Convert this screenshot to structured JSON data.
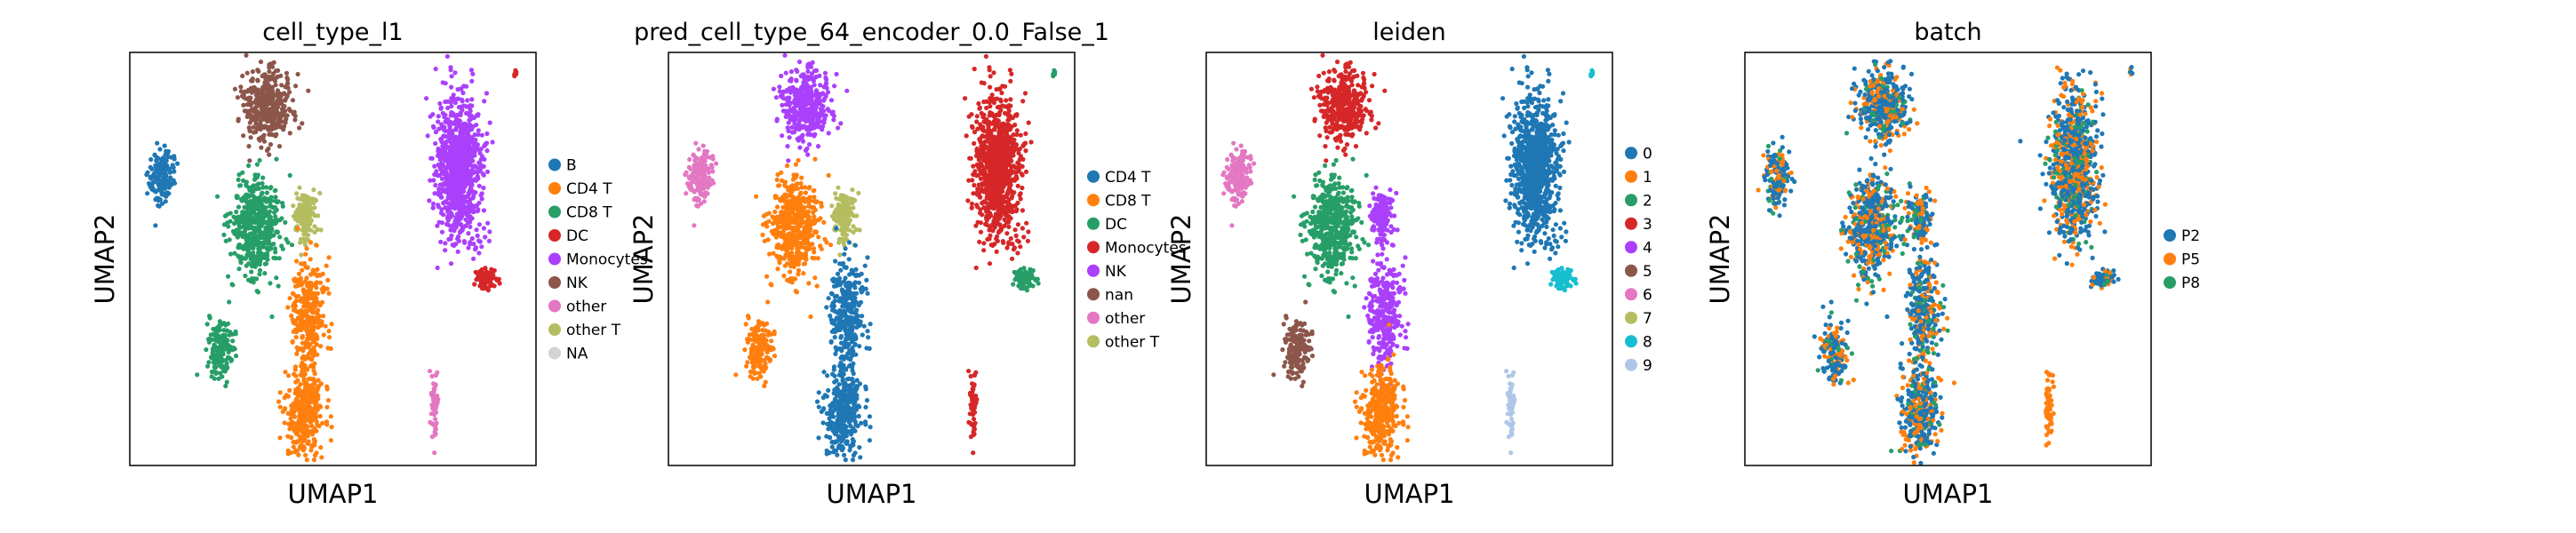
{
  "chart_data": [
    {
      "type": "scatter",
      "title": "cell_type_l1",
      "xlabel": "UMAP1",
      "ylabel": "UMAP2",
      "grid": false,
      "ticks": false,
      "legend": "right",
      "series": [
        {
          "name": "B",
          "color": "#1f77b4"
        },
        {
          "name": "CD4 T",
          "color": "#ff7f0e"
        },
        {
          "name": "CD8 T",
          "color": "#279e68"
        },
        {
          "name": "DC",
          "color": "#d62728"
        },
        {
          "name": "Monocytes",
          "color": "#aa40fc"
        },
        {
          "name": "NK",
          "color": "#8c564b"
        },
        {
          "name": "other",
          "color": "#e377c2"
        },
        {
          "name": "other T",
          "color": "#b5bd61"
        },
        {
          "name": "NA",
          "color": "#d3d3d3"
        }
      ],
      "clusters": [
        {
          "series": "NK",
          "x": 0.34,
          "y": 0.87,
          "rx": 0.06,
          "ry": 0.08,
          "n": 420
        },
        {
          "series": "CD8 T",
          "x": 0.31,
          "y": 0.58,
          "rx": 0.06,
          "ry": 0.12,
          "n": 520
        },
        {
          "series": "other T",
          "x": 0.43,
          "y": 0.6,
          "rx": 0.03,
          "ry": 0.06,
          "n": 140
        },
        {
          "series": "CD4 T",
          "x": 0.44,
          "y": 0.37,
          "rx": 0.04,
          "ry": 0.13,
          "n": 300
        },
        {
          "series": "CD4 T",
          "x": 0.43,
          "y": 0.13,
          "rx": 0.045,
          "ry": 0.11,
          "n": 360
        },
        {
          "series": "B",
          "x": 0.08,
          "y": 0.7,
          "rx": 0.03,
          "ry": 0.07,
          "n": 150
        },
        {
          "series": "CD8 T",
          "x": 0.22,
          "y": 0.28,
          "rx": 0.035,
          "ry": 0.07,
          "n": 160
        },
        {
          "series": "Monocytes",
          "x": 0.81,
          "y": 0.72,
          "rx": 0.055,
          "ry": 0.17,
          "n": 900
        },
        {
          "series": "DC",
          "x": 0.88,
          "y": 0.45,
          "rx": 0.025,
          "ry": 0.025,
          "n": 80
        },
        {
          "series": "other",
          "x": 0.75,
          "y": 0.14,
          "rx": 0.01,
          "ry": 0.09,
          "n": 60
        },
        {
          "series": "DC",
          "x": 0.95,
          "y": 0.95,
          "rx": 0.004,
          "ry": 0.01,
          "n": 6
        }
      ]
    },
    {
      "type": "scatter",
      "title": "pred_cell_type_64_encoder_0.0_False_1",
      "xlabel": "UMAP1",
      "ylabel": "UMAP2",
      "grid": false,
      "ticks": false,
      "legend": "right",
      "series": [
        {
          "name": "CD4 T",
          "color": "#1f77b4"
        },
        {
          "name": "CD8 T",
          "color": "#ff7f0e"
        },
        {
          "name": "DC",
          "color": "#279e68"
        },
        {
          "name": "Monocytes",
          "color": "#d62728"
        },
        {
          "name": "NK",
          "color": "#aa40fc"
        },
        {
          "name": "nan",
          "color": "#8c564b"
        },
        {
          "name": "other",
          "color": "#e377c2"
        },
        {
          "name": "other T",
          "color": "#b5bd61"
        }
      ],
      "clusters": [
        {
          "series": "NK",
          "x": 0.34,
          "y": 0.87,
          "rx": 0.06,
          "ry": 0.08,
          "n": 420
        },
        {
          "series": "CD8 T",
          "x": 0.31,
          "y": 0.58,
          "rx": 0.06,
          "ry": 0.12,
          "n": 520
        },
        {
          "series": "other T",
          "x": 0.43,
          "y": 0.6,
          "rx": 0.03,
          "ry": 0.06,
          "n": 140
        },
        {
          "series": "CD4 T",
          "x": 0.44,
          "y": 0.37,
          "rx": 0.04,
          "ry": 0.13,
          "n": 300
        },
        {
          "series": "CD4 T",
          "x": 0.43,
          "y": 0.13,
          "rx": 0.045,
          "ry": 0.11,
          "n": 360
        },
        {
          "series": "other",
          "x": 0.08,
          "y": 0.7,
          "rx": 0.03,
          "ry": 0.07,
          "n": 150
        },
        {
          "series": "CD8 T",
          "x": 0.22,
          "y": 0.28,
          "rx": 0.035,
          "ry": 0.07,
          "n": 160
        },
        {
          "series": "Monocytes",
          "x": 0.81,
          "y": 0.72,
          "rx": 0.055,
          "ry": 0.17,
          "n": 900
        },
        {
          "series": "DC",
          "x": 0.88,
          "y": 0.45,
          "rx": 0.025,
          "ry": 0.025,
          "n": 80
        },
        {
          "series": "Monocytes",
          "x": 0.75,
          "y": 0.14,
          "rx": 0.01,
          "ry": 0.09,
          "n": 60
        },
        {
          "series": "DC",
          "x": 0.95,
          "y": 0.95,
          "rx": 0.004,
          "ry": 0.01,
          "n": 6
        }
      ]
    },
    {
      "type": "scatter",
      "title": "leiden",
      "xlabel": "UMAP1",
      "ylabel": "UMAP2",
      "grid": false,
      "ticks": false,
      "legend": "right",
      "series": [
        {
          "name": "0",
          "color": "#1f77b4"
        },
        {
          "name": "1",
          "color": "#ff7f0e"
        },
        {
          "name": "2",
          "color": "#279e68"
        },
        {
          "name": "3",
          "color": "#d62728"
        },
        {
          "name": "4",
          "color": "#aa40fc"
        },
        {
          "name": "5",
          "color": "#8c564b"
        },
        {
          "name": "6",
          "color": "#e377c2"
        },
        {
          "name": "7",
          "color": "#b5bd61"
        },
        {
          "name": "8",
          "color": "#17becf"
        },
        {
          "name": "9",
          "color": "#aec7e8"
        }
      ],
      "clusters": [
        {
          "series": "3",
          "x": 0.34,
          "y": 0.87,
          "rx": 0.06,
          "ry": 0.08,
          "n": 420
        },
        {
          "series": "2",
          "x": 0.31,
          "y": 0.58,
          "rx": 0.06,
          "ry": 0.12,
          "n": 520
        },
        {
          "series": "4",
          "x": 0.43,
          "y": 0.6,
          "rx": 0.03,
          "ry": 0.06,
          "n": 140
        },
        {
          "series": "4",
          "x": 0.44,
          "y": 0.37,
          "rx": 0.04,
          "ry": 0.13,
          "n": 300
        },
        {
          "series": "1",
          "x": 0.43,
          "y": 0.13,
          "rx": 0.045,
          "ry": 0.11,
          "n": 360
        },
        {
          "series": "6",
          "x": 0.08,
          "y": 0.7,
          "rx": 0.03,
          "ry": 0.07,
          "n": 150
        },
        {
          "series": "5",
          "x": 0.22,
          "y": 0.28,
          "rx": 0.035,
          "ry": 0.07,
          "n": 160
        },
        {
          "series": "0",
          "x": 0.81,
          "y": 0.72,
          "rx": 0.055,
          "ry": 0.17,
          "n": 900
        },
        {
          "series": "8",
          "x": 0.88,
          "y": 0.45,
          "rx": 0.025,
          "ry": 0.025,
          "n": 80
        },
        {
          "series": "9",
          "x": 0.75,
          "y": 0.14,
          "rx": 0.01,
          "ry": 0.09,
          "n": 60
        },
        {
          "series": "8",
          "x": 0.95,
          "y": 0.95,
          "rx": 0.004,
          "ry": 0.01,
          "n": 6
        }
      ]
    },
    {
      "type": "scatter",
      "title": "batch",
      "xlabel": "UMAP1",
      "ylabel": "UMAP2",
      "grid": false,
      "ticks": false,
      "legend": "right",
      "series": [
        {
          "name": "P2",
          "color": "#1f77b4"
        },
        {
          "name": "P5",
          "color": "#ff7f0e"
        },
        {
          "name": "P8",
          "color": "#279e68"
        }
      ],
      "clusters": [
        {
          "series": "P2",
          "x": 0.34,
          "y": 0.87,
          "rx": 0.06,
          "ry": 0.08,
          "n": 420
        },
        {
          "series": "P2",
          "x": 0.31,
          "y": 0.58,
          "rx": 0.06,
          "ry": 0.12,
          "n": 520
        },
        {
          "series": "P2",
          "x": 0.43,
          "y": 0.6,
          "rx": 0.03,
          "ry": 0.06,
          "n": 140
        },
        {
          "series": "P2",
          "x": 0.44,
          "y": 0.37,
          "rx": 0.04,
          "ry": 0.13,
          "n": 300
        },
        {
          "series": "P2",
          "x": 0.43,
          "y": 0.13,
          "rx": 0.045,
          "ry": 0.11,
          "n": 360
        },
        {
          "series": "P2",
          "x": 0.08,
          "y": 0.7,
          "rx": 0.03,
          "ry": 0.07,
          "n": 150
        },
        {
          "series": "P2",
          "x": 0.22,
          "y": 0.28,
          "rx": 0.035,
          "ry": 0.07,
          "n": 160
        },
        {
          "series": "P2",
          "x": 0.81,
          "y": 0.72,
          "rx": 0.055,
          "ry": 0.17,
          "n": 900
        },
        {
          "series": "P2",
          "x": 0.88,
          "y": 0.45,
          "rx": 0.025,
          "ry": 0.025,
          "n": 80
        },
        {
          "series": "P5",
          "x": 0.75,
          "y": 0.14,
          "rx": 0.01,
          "ry": 0.09,
          "n": 60
        },
        {
          "series": "P2",
          "x": 0.95,
          "y": 0.95,
          "rx": 0.004,
          "ry": 0.01,
          "n": 6
        }
      ],
      "mix": {
        "P5": 0.3,
        "P8": 0.12
      }
    }
  ]
}
